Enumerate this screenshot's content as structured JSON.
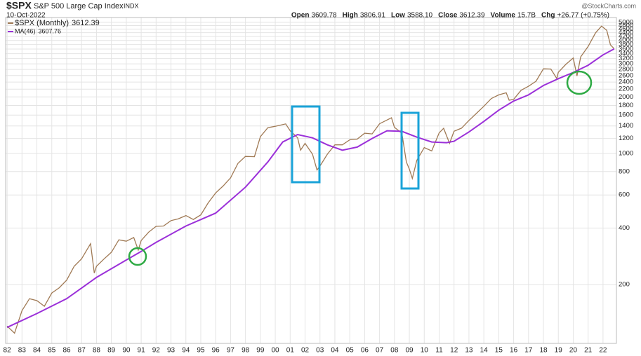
{
  "header": {
    "symbol": "$SPX",
    "name": "S&P 500 Large Cap Index",
    "exchange": "INDX",
    "date": "10-Oct-2022",
    "quote": [
      {
        "label": "Open",
        "value": "3609.78"
      },
      {
        "label": "High",
        "value": "3806.91"
      },
      {
        "label": "Low",
        "value": "3588.10"
      },
      {
        "label": "Close",
        "value": "3612.39"
      },
      {
        "label": "Volume",
        "value": "15.7B"
      },
      {
        "label": "Chg",
        "value": "+26.77 (+0.75%)"
      }
    ],
    "brand": "@StockCharts.com"
  },
  "chart_data": {
    "type": "line",
    "log_scale": true,
    "grid": true,
    "xlim": [
      1981.9,
      2022.9
    ],
    "ylim": [
      97,
      5300
    ],
    "yticks": [
      200,
      400,
      600,
      800,
      1000,
      1200,
      1400,
      1600,
      1800,
      2000,
      2200,
      2400,
      2600,
      2800,
      3000,
      3200,
      3400,
      3600,
      3800,
      4000,
      4200,
      4400,
      4600,
      4800,
      5000
    ],
    "xticks": [
      {
        "value": 1982,
        "label": "82"
      },
      {
        "value": 1983,
        "label": "83"
      },
      {
        "value": 1984,
        "label": "84"
      },
      {
        "value": 1985,
        "label": "85"
      },
      {
        "value": 1986,
        "label": "86"
      },
      {
        "value": 1987,
        "label": "87"
      },
      {
        "value": 1988,
        "label": "88"
      },
      {
        "value": 1989,
        "label": "89"
      },
      {
        "value": 1990,
        "label": "90"
      },
      {
        "value": 1991,
        "label": "91"
      },
      {
        "value": 1992,
        "label": "92"
      },
      {
        "value": 1993,
        "label": "93"
      },
      {
        "value": 1994,
        "label": "94"
      },
      {
        "value": 1995,
        "label": "95"
      },
      {
        "value": 1996,
        "label": "96"
      },
      {
        "value": 1997,
        "label": "97"
      },
      {
        "value": 1998,
        "label": "98"
      },
      {
        "value": 1999,
        "label": "99"
      },
      {
        "value": 2000,
        "label": "00"
      },
      {
        "value": 2001,
        "label": "01"
      },
      {
        "value": 2002,
        "label": "02"
      },
      {
        "value": 2003,
        "label": "03"
      },
      {
        "value": 2004,
        "label": "04"
      },
      {
        "value": 2005,
        "label": "05"
      },
      {
        "value": 2006,
        "label": "06"
      },
      {
        "value": 2007,
        "label": "07"
      },
      {
        "value": 2008,
        "label": "08"
      },
      {
        "value": 2009,
        "label": "09"
      },
      {
        "value": 2010,
        "label": "10"
      },
      {
        "value": 2011,
        "label": "11"
      },
      {
        "value": 2012,
        "label": "12"
      },
      {
        "value": 2013,
        "label": "13"
      },
      {
        "value": 2014,
        "label": "14"
      },
      {
        "value": 2015,
        "label": "15"
      },
      {
        "value": 2016,
        "label": "16"
      },
      {
        "value": 2017,
        "label": "17"
      },
      {
        "value": 2018,
        "label": "18"
      },
      {
        "value": 2019,
        "label": "19"
      },
      {
        "value": 2020,
        "label": "20"
      },
      {
        "value": 2021,
        "label": "21"
      },
      {
        "value": 2022,
        "label": "22"
      }
    ],
    "series": [
      {
        "name": "$SPX (Monthly)",
        "legend_value": "3612.39",
        "color": "#a07a55",
        "x": [
          1982.0,
          1982.5,
          1983.0,
          1983.5,
          1984.0,
          1984.5,
          1985.0,
          1985.5,
          1986.0,
          1986.5,
          1987.0,
          1987.6,
          1987.85,
          1988.0,
          1988.5,
          1989.0,
          1989.5,
          1990.0,
          1990.5,
          1990.8,
          1991.0,
          1991.5,
          1992.0,
          1992.5,
          1993.0,
          1993.5,
          1994.0,
          1994.5,
          1995.0,
          1995.5,
          1996.0,
          1996.5,
          1997.0,
          1997.5,
          1998.0,
          1998.6,
          1999.0,
          1999.5,
          2000.0,
          2000.7,
          2001.0,
          2001.5,
          2001.7,
          2002.0,
          2002.5,
          2002.8,
          2003.0,
          2003.5,
          2004.0,
          2004.5,
          2005.0,
          2005.5,
          2006.0,
          2006.5,
          2007.0,
          2007.8,
          2008.0,
          2008.5,
          2008.8,
          2009.0,
          2009.2,
          2009.5,
          2010.0,
          2010.5,
          2011.0,
          2011.3,
          2011.7,
          2012.0,
          2012.5,
          2013.0,
          2013.5,
          2014.0,
          2014.5,
          2015.0,
          2015.5,
          2015.7,
          2016.0,
          2016.5,
          2017.0,
          2017.5,
          2018.0,
          2018.5,
          2018.9,
          2019.0,
          2019.5,
          2020.0,
          2020.25,
          2020.5,
          2021.0,
          2021.5,
          2021.9,
          2022.25,
          2022.5,
          2022.75
        ],
        "values": [
          120,
          110,
          145,
          168,
          164,
          153,
          180,
          192,
          211,
          250,
          274,
          330,
          230,
          250,
          273,
          297,
          346,
          340,
          356,
          305,
          343,
          380,
          408,
          410,
          438,
          448,
          466,
          444,
          470,
          545,
          615,
          670,
          740,
          885,
          963,
          960,
          1229,
          1370,
          1394,
          1436,
          1320,
          1211,
          1040,
          1130,
          990,
          815,
          855,
          990,
          1111,
          1110,
          1181,
          1191,
          1280,
          1270,
          1438,
          1549,
          1378,
          1280,
          900,
          825,
          735,
          919,
          1073,
          1030,
          1286,
          1360,
          1131,
          1312,
          1362,
          1498,
          1632,
          1782,
          1960,
          2050,
          2104,
          1920,
          1940,
          2170,
          2279,
          2423,
          2823,
          2816,
          2506,
          2704,
          2980,
          3225,
          2585,
          3271,
          3714,
          4395,
          4766,
          4530,
          3785,
          3612
        ]
      },
      {
        "name": "MA(46)",
        "legend_value": "3607.76",
        "color": "#9b30d9",
        "x": [
          1982.0,
          1984.0,
          1986.0,
          1988.0,
          1990.0,
          1991.0,
          1992.0,
          1994.0,
          1996.0,
          1998.0,
          1999.5,
          2000.5,
          2001.5,
          2002.5,
          2003.5,
          2004.5,
          2005.5,
          2006.5,
          2007.5,
          2008.5,
          2009.5,
          2010.5,
          2011.5,
          2012.0,
          2013.0,
          2014.0,
          2015.0,
          2016.0,
          2017.0,
          2018.0,
          2019.0,
          2020.0,
          2021.0,
          2022.0,
          2022.75
        ],
        "values": [
          118,
          140,
          168,
          218,
          270,
          300,
          335,
          410,
          480,
          660,
          900,
          1150,
          1260,
          1210,
          1110,
          1040,
          1080,
          1200,
          1320,
          1310,
          1220,
          1150,
          1140,
          1160,
          1300,
          1480,
          1700,
          1900,
          2050,
          2300,
          2500,
          2700,
          2950,
          3350,
          3608
        ]
      }
    ]
  }
}
